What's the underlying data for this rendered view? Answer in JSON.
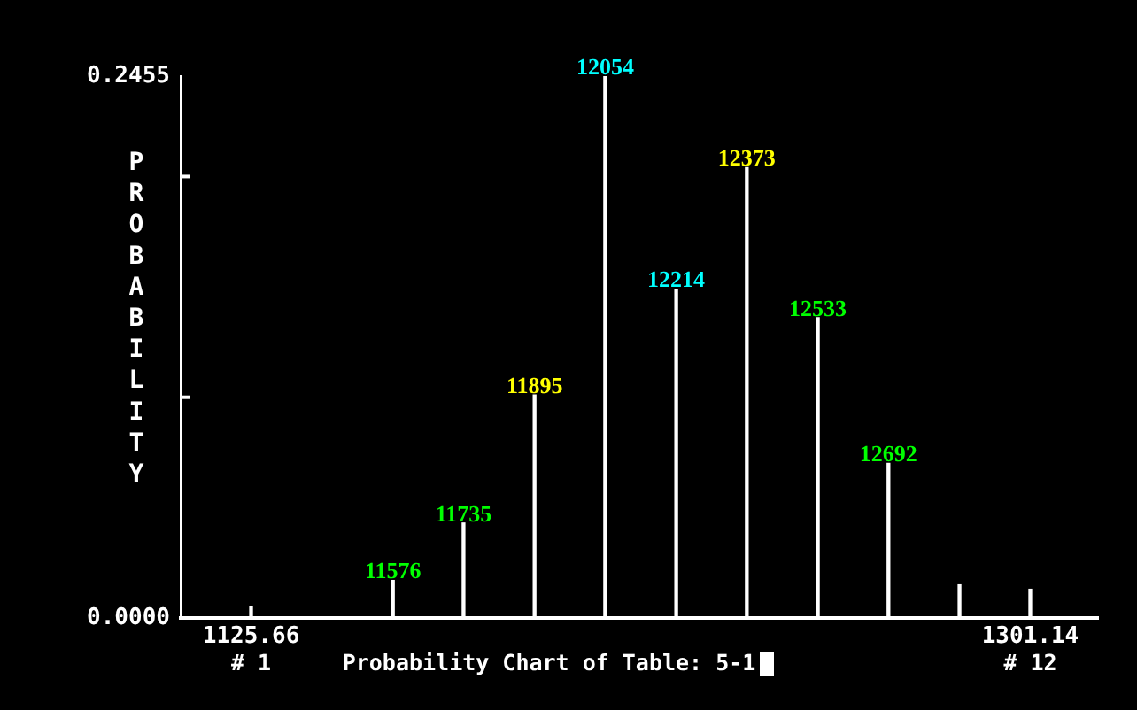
{
  "chart_data": {
    "type": "bar",
    "title": "Probability Chart of Table: 5-1",
    "ylabel": "PROBABILITY",
    "x": [
      1125.66,
      1157.6,
      1173.5,
      1189.5,
      1205.4,
      1221.4,
      1237.3,
      1253.3,
      1269.2,
      1285.2,
      1301.14
    ],
    "values": [
      0.005,
      0.017,
      0.043,
      0.101,
      0.2455,
      0.149,
      0.204,
      0.136,
      0.07,
      0.015,
      0.013
    ],
    "color": "#ffffff",
    "xlim": [
      1109.8,
      1316.4
    ],
    "xticks": [
      1125.66,
      1301.14
    ],
    "ylim": [
      0,
      0.2455
    ],
    "yticks": [
      {
        "value": 0,
        "label": "0.0000"
      },
      {
        "value": 0.1,
        "label": null
      },
      {
        "value": 0.2,
        "label": null
      },
      0.2455
    ],
    "annotations": [
      {
        "text": "11576",
        "x": 1157.6,
        "y": 0.017
      },
      {
        "text": "11735",
        "x": 1173.5,
        "y": 0.043
      },
      {
        "text": "11895",
        "x": 1189.5,
        "y": 0.101
      },
      {
        "text": "12054",
        "x": 1205.4,
        "y": 0.2455
      },
      {
        "text": "12214",
        "x": 1221.4,
        "y": 0.149
      },
      {
        "text": "12373",
        "x": 1237.3,
        "y": 0.204
      },
      {
        "text": "12533",
        "x": 1253.3,
        "y": 0.136
      },
      {
        "text": "12692",
        "x": 1269.2,
        "y": 0.07
      },
      "# 1",
      "# 12"
    ]
  }
}
